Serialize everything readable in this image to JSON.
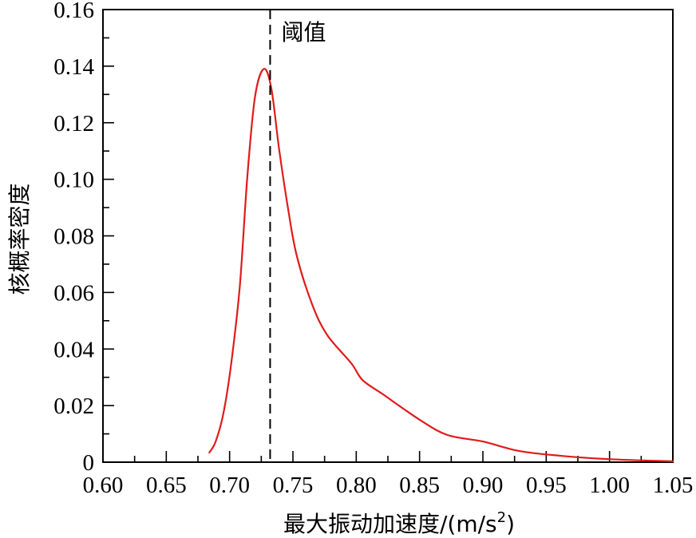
{
  "chart_data": {
    "type": "line",
    "title": "",
    "xlabel": "最大振动加速度/(m/s²)",
    "xlabel_base": "最大振动加速度/(m/s",
    "xlabel_sup": "2",
    "xlabel_tail": ")",
    "ylabel": "核概率密度",
    "xlim": [
      0.6,
      1.05
    ],
    "ylim": [
      0,
      0.16
    ],
    "grid": false,
    "legend": null,
    "x_ticks": [
      "0.60",
      "0.65",
      "0.70",
      "0.75",
      "0.80",
      "0.85",
      "0.90",
      "0.95",
      "1.00",
      "1.05"
    ],
    "y_ticks": [
      "0",
      "0.02",
      "0.04",
      "0.06",
      "0.08",
      "0.10",
      "0.12",
      "0.14",
      "0.16"
    ],
    "annotations": [
      {
        "type": "vline",
        "x": 0.732,
        "style": "dashed",
        "color": "#000000",
        "label": "阈值"
      }
    ],
    "series": [
      {
        "name": "核概率密度",
        "color": "#e01b1b",
        "x": [
          0.684,
          0.689,
          0.695,
          0.701,
          0.708,
          0.714,
          0.72,
          0.727,
          0.733,
          0.739,
          0.746,
          0.753,
          0.765,
          0.777,
          0.796,
          0.805,
          0.821,
          0.85,
          0.872,
          0.9,
          0.928,
          0.96,
          0.998,
          1.05
        ],
        "y": [
          0.0034,
          0.0073,
          0.017,
          0.034,
          0.062,
          0.101,
          0.129,
          0.139,
          0.132,
          0.111,
          0.09,
          0.073,
          0.056,
          0.045,
          0.035,
          0.029,
          0.024,
          0.015,
          0.0096,
          0.0073,
          0.004,
          0.0023,
          0.0011,
          0.0003
        ]
      }
    ]
  },
  "colors": {
    "curve": "#e01b1b",
    "axis": "#000000",
    "threshold": "#000000"
  }
}
